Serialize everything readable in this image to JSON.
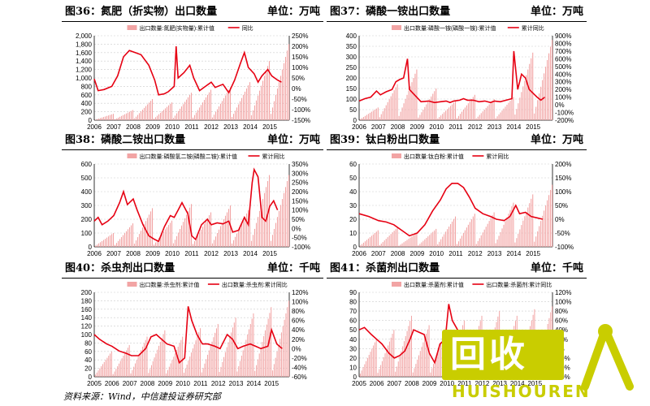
{
  "source_note": "资料来源：Wind，中信建投证券研究部",
  "watermark": {
    "main": "回收",
    "sub": "HUISHOUREN",
    "brand_color": "#c9cd00"
  },
  "colors": {
    "bar": "#f2a4a4",
    "line": "#e60012",
    "grid": "#cccccc"
  },
  "chart_data": [
    {
      "type": "bar",
      "title": "图36：氮肥（折实物）出口数量",
      "unit": "单位：万吨",
      "series": [
        {
          "name": "出口数量:氮肥(实物量):累计值",
          "kind": "bar",
          "axis": "left"
        },
        {
          "name": "同比",
          "kind": "line",
          "axis": "right"
        }
      ],
      "x_ticks": [
        "2006",
        "2007",
        "2008",
        "2009",
        "2010",
        "2011",
        "2012",
        "2013",
        "2014",
        "2015"
      ],
      "x_range": [
        2006,
        2016
      ],
      "y_left": {
        "min": 0,
        "max": 2000,
        "step": 200,
        "ticks": [
          "0",
          "200",
          "400",
          "600",
          "800",
          "1,000",
          "1,200",
          "1,400",
          "1,600",
          "1,800",
          "2,000"
        ]
      },
      "y_right": {
        "min": -150,
        "max": 250,
        "step": 50,
        "ticks": [
          "-150%",
          "-100%",
          "-50%",
          "0%",
          "50%",
          "100%",
          "150%",
          "200%",
          "250%"
        ]
      },
      "year_peaks": [
        150,
        240,
        500,
        420,
        650,
        720,
        780,
        900,
        1400,
        1800
      ],
      "line_points": [
        [
          2006,
          45
        ],
        [
          2006.2,
          -10
        ],
        [
          2006.5,
          -5
        ],
        [
          2006.9,
          10
        ],
        [
          2007.2,
          60
        ],
        [
          2007.5,
          150
        ],
        [
          2007.8,
          180
        ],
        [
          2008.1,
          170
        ],
        [
          2008.4,
          160
        ],
        [
          2008.8,
          110
        ],
        [
          2009.1,
          40
        ],
        [
          2009.3,
          -30
        ],
        [
          2009.6,
          -25
        ],
        [
          2009.8,
          -15
        ],
        [
          2010.1,
          10
        ],
        [
          2010.2,
          200
        ],
        [
          2010.3,
          50
        ],
        [
          2010.6,
          75
        ],
        [
          2010.9,
          110
        ],
        [
          2011.1,
          50
        ],
        [
          2011.4,
          -10
        ],
        [
          2011.7,
          10
        ],
        [
          2012.0,
          30
        ],
        [
          2012.2,
          5
        ],
        [
          2012.6,
          20
        ],
        [
          2012.9,
          -20
        ],
        [
          2013.2,
          40
        ],
        [
          2013.5,
          120
        ],
        [
          2013.7,
          170
        ],
        [
          2013.9,
          100
        ],
        [
          2014.2,
          70
        ],
        [
          2014.4,
          30
        ],
        [
          2014.6,
          60
        ],
        [
          2014.9,
          90
        ],
        [
          2015.1,
          60
        ],
        [
          2015.4,
          40
        ],
        [
          2015.6,
          30
        ]
      ]
    },
    {
      "type": "bar",
      "title": "图37：磷酸一铵出口数量",
      "unit": "单位：万吨",
      "series": [
        {
          "name": "出口数量:磷酸一铵(磷酸一铵):累计值",
          "kind": "bar",
          "axis": "left"
        },
        {
          "name": "累计同比",
          "kind": "line",
          "axis": "right"
        }
      ],
      "x_ticks": [
        "2006",
        "2007",
        "2008",
        "2009",
        "2010",
        "2011",
        "2012",
        "2013",
        "2014",
        "2015"
      ],
      "x_range": [
        2006,
        2016
      ],
      "y_left": {
        "min": 0,
        "max": 400,
        "step": 50,
        "ticks": [
          "0",
          "50",
          "100",
          "150",
          "200",
          "250",
          "300",
          "350",
          "400"
        ]
      },
      "y_right": {
        "min": -200,
        "max": 900,
        "step": 100,
        "ticks": [
          "-200%",
          "-100%",
          "0%",
          "100%",
          "200%",
          "300%",
          "400%",
          "500%",
          "600%",
          "700%",
          "800%",
          "900%"
        ]
      },
      "year_peaks": [
        60,
        170,
        240,
        150,
        90,
        120,
        100,
        110,
        320,
        380
      ],
      "line_points": [
        [
          2006,
          50
        ],
        [
          2006.3,
          80
        ],
        [
          2006.6,
          100
        ],
        [
          2006.9,
          180
        ],
        [
          2007.1,
          130
        ],
        [
          2007.4,
          170
        ],
        [
          2007.7,
          200
        ],
        [
          2007.9,
          300
        ],
        [
          2008.1,
          330
        ],
        [
          2008.3,
          350
        ],
        [
          2008.5,
          600
        ],
        [
          2008.6,
          200
        ],
        [
          2008.9,
          120
        ],
        [
          2009.2,
          40
        ],
        [
          2009.6,
          50
        ],
        [
          2009.9,
          30
        ],
        [
          2010.2,
          40
        ],
        [
          2010.5,
          50
        ],
        [
          2010.7,
          30
        ],
        [
          2010.9,
          50
        ],
        [
          2011.2,
          60
        ],
        [
          2011.4,
          80
        ],
        [
          2011.6,
          60
        ],
        [
          2011.9,
          60
        ],
        [
          2012.2,
          40
        ],
        [
          2012.5,
          50
        ],
        [
          2012.8,
          30
        ],
        [
          2013.0,
          50
        ],
        [
          2013.3,
          40
        ],
        [
          2013.6,
          60
        ],
        [
          2013.9,
          80
        ],
        [
          2014.0,
          700
        ],
        [
          2014.2,
          200
        ],
        [
          2014.4,
          400
        ],
        [
          2014.6,
          350
        ],
        [
          2014.8,
          200
        ],
        [
          2015.0,
          150
        ],
        [
          2015.2,
          100
        ],
        [
          2015.4,
          60
        ],
        [
          2015.6,
          100
        ]
      ]
    },
    {
      "type": "bar",
      "title": "图38：磷酸二铵出口数量",
      "unit": "单位：万吨",
      "series": [
        {
          "name": "出口数量:磷酸氢二铵(磷酸二铵):累计值",
          "kind": "bar",
          "axis": "left"
        },
        {
          "name": "累计同比",
          "kind": "line",
          "axis": "right"
        }
      ],
      "x_ticks": [
        "2006",
        "2007",
        "2008",
        "2009",
        "2010",
        "2011",
        "2012",
        "2013",
        "2014",
        "2015"
      ],
      "x_range": [
        2006,
        2016
      ],
      "y_left": {
        "min": 0,
        "max": 600,
        "step": 100,
        "ticks": [
          "0",
          "100",
          "200",
          "300",
          "400",
          "500",
          "600"
        ]
      },
      "y_right": {
        "min": -100,
        "max": 350,
        "step": 50,
        "ticks": [
          "-100%",
          "-50%",
          "0%",
          "50%",
          "100%",
          "150%",
          "200%",
          "250%",
          "300%",
          "350%"
        ]
      },
      "year_peaks": [
        100,
        170,
        280,
        190,
        310,
        250,
        300,
        290,
        520,
        520
      ],
      "line_points": [
        [
          2006,
          40
        ],
        [
          2006.2,
          60
        ],
        [
          2006.4,
          20
        ],
        [
          2006.7,
          40
        ],
        [
          2007.0,
          70
        ],
        [
          2007.3,
          140
        ],
        [
          2007.5,
          200
        ],
        [
          2007.7,
          130
        ],
        [
          2008.0,
          160
        ],
        [
          2008.2,
          100
        ],
        [
          2008.5,
          20
        ],
        [
          2008.8,
          -40
        ],
        [
          2009.1,
          -60
        ],
        [
          2009.3,
          -70
        ],
        [
          2009.6,
          10
        ],
        [
          2009.9,
          70
        ],
        [
          2010.1,
          60
        ],
        [
          2010.3,
          100
        ],
        [
          2010.5,
          140
        ],
        [
          2010.8,
          80
        ],
        [
          2011.0,
          -40
        ],
        [
          2011.2,
          -60
        ],
        [
          2011.5,
          20
        ],
        [
          2011.8,
          50
        ],
        [
          2012.0,
          20
        ],
        [
          2012.3,
          30
        ],
        [
          2012.6,
          25
        ],
        [
          2012.9,
          40
        ],
        [
          2013.1,
          -20
        ],
        [
          2013.4,
          -10
        ],
        [
          2013.7,
          60
        ],
        [
          2013.9,
          20
        ],
        [
          2014.1,
          250
        ],
        [
          2014.2,
          320
        ],
        [
          2014.4,
          280
        ],
        [
          2014.6,
          60
        ],
        [
          2014.8,
          40
        ],
        [
          2015.0,
          120
        ],
        [
          2015.2,
          150
        ],
        [
          2015.4,
          100
        ]
      ]
    },
    {
      "type": "bar",
      "title": "图39：钛白粉出口数量",
      "unit": "单位：万吨",
      "series": [
        {
          "name": "出口数量:钛白粉:累计值",
          "kind": "bar",
          "axis": "left"
        },
        {
          "name": "累计同比",
          "kind": "line",
          "axis": "right"
        }
      ],
      "x_ticks": [
        "2006",
        "2007",
        "2008",
        "2009",
        "2010",
        "2011",
        "2012",
        "2013",
        "2014",
        "2015"
      ],
      "x_range": [
        2006,
        2016
      ],
      "y_left": {
        "min": 0,
        "max": 60,
        "step": 10,
        "ticks": [
          "0",
          "10",
          "20",
          "30",
          "40",
          "50",
          "60"
        ]
      },
      "y_right": {
        "min": -100,
        "max": 200,
        "step": 50,
        "ticks": [
          "-100%",
          "-50%",
          "0%",
          "50%",
          "100%",
          "150%",
          "200%"
        ]
      },
      "year_peaks": [
        12,
        14,
        10,
        13,
        22,
        24,
        25,
        32,
        38,
        45
      ],
      "line_points": [
        [
          2006,
          20
        ],
        [
          2006.5,
          10
        ],
        [
          2007.0,
          -5
        ],
        [
          2007.4,
          -10
        ],
        [
          2007.8,
          -20
        ],
        [
          2008.2,
          -40
        ],
        [
          2008.6,
          -60
        ],
        [
          2009.0,
          -50
        ],
        [
          2009.4,
          -20
        ],
        [
          2009.8,
          30
        ],
        [
          2010.2,
          70
        ],
        [
          2010.5,
          110
        ],
        [
          2010.8,
          130
        ],
        [
          2011.1,
          130
        ],
        [
          2011.4,
          115
        ],
        [
          2011.7,
          80
        ],
        [
          2012.0,
          40
        ],
        [
          2012.4,
          20
        ],
        [
          2012.8,
          10
        ],
        [
          2013.1,
          0
        ],
        [
          2013.5,
          -5
        ],
        [
          2013.8,
          10
        ],
        [
          2014.1,
          50
        ],
        [
          2014.3,
          20
        ],
        [
          2014.6,
          25
        ],
        [
          2014.9,
          10
        ],
        [
          2015.2,
          5
        ],
        [
          2015.5,
          0
        ]
      ]
    },
    {
      "type": "bar",
      "title": "图40：杀虫剂出口数量",
      "unit": "单位：千吨",
      "series": [
        {
          "name": "出口数量:杀虫剂:累计值",
          "kind": "bar",
          "axis": "left"
        },
        {
          "name": "出口数量:杀虫剂:累计同比",
          "kind": "line",
          "axis": "right"
        }
      ],
      "x_ticks": [
        "2005",
        "2006",
        "2007",
        "2008",
        "2009",
        "2010",
        "2011",
        "2012",
        "2013",
        "2014",
        "2015"
      ],
      "x_range": [
        2005,
        2016
      ],
      "y_left": {
        "min": 0,
        "max": 200,
        "step": 20,
        "ticks": [
          "0",
          "20",
          "40",
          "60",
          "80",
          "100",
          "120",
          "140",
          "160",
          "180",
          "200"
        ]
      },
      "y_right": {
        "min": -60,
        "max": 120,
        "step": 20,
        "ticks": [
          "-60%",
          "-40%",
          "-20%",
          "0%",
          "20%",
          "40%",
          "60%",
          "80%",
          "100%",
          "120%"
        ]
      },
      "year_peaks": [
        60,
        75,
        95,
        110,
        95,
        115,
        125,
        140,
        150,
        165,
        180
      ],
      "line_points": [
        [
          2005,
          30
        ],
        [
          2005.3,
          20
        ],
        [
          2005.7,
          10
        ],
        [
          2006.0,
          5
        ],
        [
          2006.4,
          -5
        ],
        [
          2006.8,
          -10
        ],
        [
          2007.1,
          -15
        ],
        [
          2007.5,
          -15
        ],
        [
          2007.9,
          0
        ],
        [
          2008.2,
          25
        ],
        [
          2008.5,
          30
        ],
        [
          2008.8,
          20
        ],
        [
          2009.1,
          10
        ],
        [
          2009.5,
          5
        ],
        [
          2009.8,
          -30
        ],
        [
          2010.1,
          -20
        ],
        [
          2010.3,
          90
        ],
        [
          2010.5,
          60
        ],
        [
          2010.8,
          30
        ],
        [
          2011.1,
          10
        ],
        [
          2011.4,
          10
        ],
        [
          2011.8,
          5
        ],
        [
          2012.1,
          0
        ],
        [
          2012.5,
          30
        ],
        [
          2012.8,
          20
        ],
        [
          2013.1,
          0
        ],
        [
          2013.4,
          5
        ],
        [
          2013.8,
          10
        ],
        [
          2014.1,
          5
        ],
        [
          2014.4,
          0
        ],
        [
          2014.8,
          5
        ],
        [
          2015.0,
          40
        ],
        [
          2015.3,
          10
        ],
        [
          2015.6,
          0
        ]
      ]
    },
    {
      "type": "bar",
      "title": "图41：杀菌剂出口数量",
      "unit": "单位：千吨",
      "series": [
        {
          "name": "出口数量:杀菌剂:累计值",
          "kind": "bar",
          "axis": "left"
        },
        {
          "name": "出口数量:杀菌剂:累计同比",
          "kind": "line",
          "axis": "right"
        }
      ],
      "x_ticks": [
        "2005",
        "2006",
        "2007",
        "2008",
        "2009",
        "2010",
        "2011",
        "2012",
        "2013",
        "2014",
        "2015"
      ],
      "x_range": [
        2005,
        2016
      ],
      "y_left": {
        "min": 0,
        "max": 90,
        "step": 10,
        "ticks": [
          "0",
          "10",
          "20",
          "30",
          "40",
          "50",
          "60",
          "70",
          "80",
          "90"
        ]
      },
      "y_right": {
        "min": -60,
        "max": 120,
        "step": 20,
        "ticks": [
          "-60%",
          "-40%",
          "-20%",
          "0%",
          "20%",
          "40%",
          "60%",
          "80%",
          "100%",
          "120%"
        ]
      },
      "year_peaks": [
        40,
        50,
        65,
        55,
        55,
        60,
        65,
        70,
        65,
        72,
        75
      ],
      "line_points": [
        [
          2005,
          40
        ],
        [
          2005.3,
          45
        ],
        [
          2005.7,
          30
        ],
        [
          2006.0,
          20
        ],
        [
          2006.3,
          10
        ],
        [
          2006.7,
          -10
        ],
        [
          2007.0,
          -20
        ],
        [
          2007.3,
          -15
        ],
        [
          2007.6,
          -5
        ],
        [
          2007.9,
          20
        ],
        [
          2008.1,
          40
        ],
        [
          2008.4,
          35
        ],
        [
          2008.7,
          30
        ],
        [
          2009.0,
          -10
        ],
        [
          2009.3,
          -30
        ],
        [
          2009.6,
          10
        ],
        [
          2009.9,
          20
        ],
        [
          2010.1,
          95
        ],
        [
          2010.3,
          60
        ],
        [
          2010.6,
          40
        ],
        [
          2010.9,
          30
        ],
        [
          2011.2,
          20
        ],
        [
          2011.5,
          10
        ],
        [
          2011.8,
          5
        ]
      ]
    }
  ]
}
